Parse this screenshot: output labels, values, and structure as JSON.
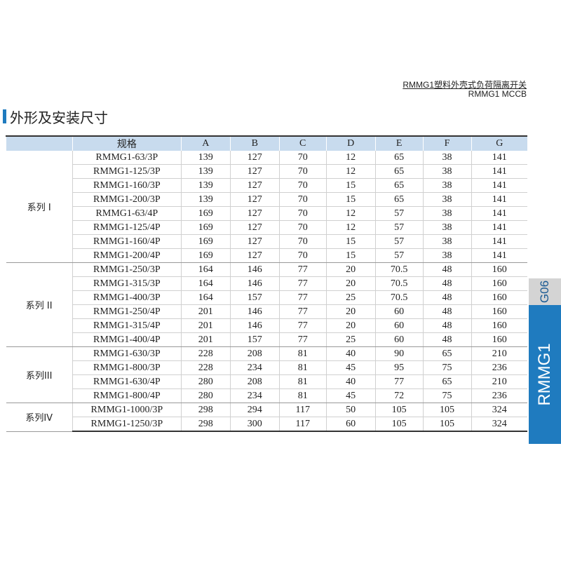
{
  "header": {
    "title_cn": "RMMG1塑料外壳式负荷隔离开关",
    "title_en": "RMMG1   MCCB"
  },
  "section_title": "外形及安装尺寸",
  "accent_color": "#1f7bbf",
  "table": {
    "columns": [
      "",
      "规格",
      "A",
      "B",
      "C",
      "D",
      "E",
      "F",
      "G"
    ],
    "groups": [
      {
        "name": "系列 I",
        "rows": [
          [
            "RMMG1-63/3P",
            "139",
            "127",
            "70",
            "12",
            "65",
            "38",
            "141"
          ],
          [
            "RMMG1-125/3P",
            "139",
            "127",
            "70",
            "12",
            "65",
            "38",
            "141"
          ],
          [
            "RMMG1-160/3P",
            "139",
            "127",
            "70",
            "15",
            "65",
            "38",
            "141"
          ],
          [
            "RMMG1-200/3P",
            "139",
            "127",
            "70",
            "15",
            "65",
            "38",
            "141"
          ],
          [
            "RMMG1-63/4P",
            "169",
            "127",
            "70",
            "12",
            "57",
            "38",
            "141"
          ],
          [
            "RMMG1-125/4P",
            "169",
            "127",
            "70",
            "12",
            "57",
            "38",
            "141"
          ],
          [
            "RMMG1-160/4P",
            "169",
            "127",
            "70",
            "15",
            "57",
            "38",
            "141"
          ],
          [
            "RMMG1-200/4P",
            "169",
            "127",
            "70",
            "15",
            "57",
            "38",
            "141"
          ]
        ]
      },
      {
        "name": "系列 II",
        "rows": [
          [
            "RMMG1-250/3P",
            "164",
            "146",
            "77",
            "20",
            "70.5",
            "48",
            "160"
          ],
          [
            "RMMG1-315/3P",
            "164",
            "146",
            "77",
            "20",
            "70.5",
            "48",
            "160"
          ],
          [
            "RMMG1-400/3P",
            "164",
            "157",
            "77",
            "25",
            "70.5",
            "48",
            "160"
          ],
          [
            "RMMG1-250/4P",
            "201",
            "146",
            "77",
            "20",
            "60",
            "48",
            "160"
          ],
          [
            "RMMG1-315/4P",
            "201",
            "146",
            "77",
            "20",
            "60",
            "48",
            "160"
          ],
          [
            "RMMG1-400/4P",
            "201",
            "157",
            "77",
            "25",
            "60",
            "48",
            "160"
          ]
        ]
      },
      {
        "name": "系列III",
        "rows": [
          [
            "RMMG1-630/3P",
            "228",
            "208",
            "81",
            "40",
            "90",
            "65",
            "210"
          ],
          [
            "RMMG1-800/3P",
            "228",
            "234",
            "81",
            "45",
            "95",
            "75",
            "236"
          ],
          [
            "RMMG1-630/4P",
            "280",
            "208",
            "81",
            "40",
            "77",
            "65",
            "210"
          ],
          [
            "RMMG1-800/4P",
            "280",
            "234",
            "81",
            "45",
            "72",
            "75",
            "236"
          ]
        ]
      },
      {
        "name": "系列IV",
        "rows": [
          [
            "RMMG1-1000/3P",
            "298",
            "294",
            "117",
            "50",
            "105",
            "105",
            "324"
          ],
          [
            "RMMG1-1250/3P",
            "298",
            "300",
            "117",
            "60",
            "105",
            "105",
            "324"
          ]
        ]
      }
    ]
  },
  "side_tabs": {
    "page_code": "G06",
    "product": "RMMG1"
  }
}
